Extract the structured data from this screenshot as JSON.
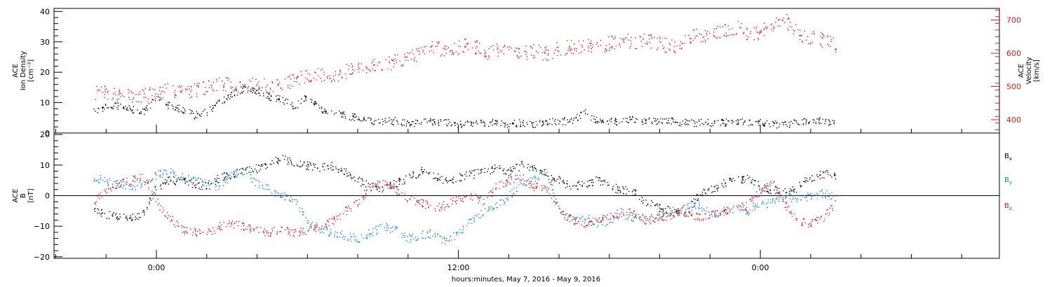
{
  "chart_data": [
    {
      "type": "scatter",
      "panel": "top",
      "left_axis": {
        "title_lines": [
          "ACE",
          "Ion Density",
          "[cm⁻³]"
        ],
        "ylim": [
          0,
          41
        ],
        "ticks": [
          "0",
          "10",
          "20",
          "30",
          "40"
        ],
        "color": "#000000"
      },
      "right_axis": {
        "title_lines": [
          "ACE",
          "Velocity",
          "[km/s]"
        ],
        "ylim": [
          360,
          735
        ],
        "ticks": [
          "400",
          "500",
          "600",
          "700"
        ],
        "color": "#e8161b"
      },
      "series": [
        {
          "axis": "left",
          "color": "#000000",
          "x": [
            -5,
            -4,
            -3,
            -2,
            -1,
            0,
            1,
            2,
            3,
            4,
            5,
            6,
            7,
            8,
            9,
            10,
            11,
            12,
            13,
            14,
            15,
            16,
            17,
            18,
            19,
            20,
            21,
            22,
            23,
            24,
            25,
            26,
            27,
            28,
            29,
            30,
            31,
            32,
            33,
            34,
            35,
            36,
            37,
            38,
            39,
            40,
            41,
            42,
            43,
            44,
            45,
            46,
            47,
            48,
            49,
            50,
            51,
            52,
            53,
            54
          ],
          "y": [
            7,
            9,
            9,
            8,
            7,
            12,
            9,
            8,
            6,
            7,
            10,
            13,
            15,
            14,
            12,
            11,
            9,
            12,
            8,
            7,
            6,
            5,
            4,
            4,
            4,
            3.5,
            3.5,
            4,
            3.5,
            3,
            3.5,
            3.5,
            3.5,
            3,
            3.5,
            3,
            3.5,
            4,
            4,
            7,
            4,
            4,
            4,
            4.5,
            4,
            4,
            4,
            3.5,
            3.5,
            3.5,
            3.5,
            4,
            3.5,
            3.5,
            3,
            3,
            3.5,
            4,
            4,
            3
          ]
        },
        {
          "axis": "right",
          "color": "#e8161b",
          "x": [
            -5,
            -4,
            -3,
            -2,
            -1,
            0,
            1,
            2,
            3,
            4,
            5,
            6,
            7,
            8,
            9,
            10,
            11,
            12,
            13,
            14,
            15,
            16,
            17,
            18,
            19,
            20,
            21,
            22,
            23,
            24,
            25,
            26,
            27,
            28,
            29,
            30,
            31,
            32,
            33,
            34,
            35,
            36,
            37,
            38,
            39,
            40,
            41,
            42,
            43,
            44,
            45,
            46,
            47,
            48,
            49,
            50,
            51,
            52,
            53,
            54
          ],
          "y": [
            480,
            485,
            475,
            470,
            475,
            485,
            490,
            485,
            490,
            500,
            510,
            505,
            500,
            510,
            500,
            510,
            520,
            530,
            540,
            530,
            545,
            555,
            560,
            565,
            575,
            585,
            600,
            620,
            610,
            620,
            630,
            600,
            610,
            620,
            600,
            610,
            600,
            615,
            620,
            625,
            620,
            630,
            640,
            635,
            640,
            630,
            620,
            640,
            660,
            650,
            670,
            680,
            660,
            665,
            690,
            700,
            660,
            650,
            640,
            620
          ]
        }
      ]
    },
    {
      "type": "scatter",
      "panel": "bottom",
      "left_axis": {
        "title_lines": [
          "ACE",
          "B",
          "[nT]"
        ],
        "ylim": [
          -20.5,
          20.5
        ],
        "ticks": [
          "−20",
          "−10",
          "0",
          "10",
          "20"
        ]
      },
      "xticks": [
        "0:00",
        "12:00",
        "0:00"
      ],
      "xlabel": "hours:minutes, May  7, 2016 - May  9, 2016",
      "series": [
        {
          "name": "B",
          "subscript": "x",
          "color": "#000000",
          "x": [
            -5,
            -4,
            -3,
            -2,
            -1,
            0,
            1,
            2,
            3,
            4,
            5,
            6,
            7,
            8,
            9,
            10,
            11,
            12,
            13,
            14,
            15,
            16,
            17,
            18,
            19,
            20,
            21,
            22,
            23,
            24,
            25,
            26,
            27,
            28,
            29,
            30,
            31,
            32,
            33,
            34,
            35,
            36,
            37,
            38,
            39,
            40,
            41,
            42,
            43,
            44,
            45,
            46,
            47,
            48,
            49,
            50,
            51,
            52,
            53,
            54
          ],
          "y": [
            -4,
            -6,
            -7,
            -7,
            -6,
            3,
            5,
            5,
            4,
            3,
            6,
            7,
            8,
            9,
            11,
            12,
            11,
            10,
            9,
            10,
            8,
            5,
            3,
            2,
            4,
            6,
            8,
            7,
            5,
            6,
            7,
            8,
            9,
            8,
            10,
            9,
            7,
            5,
            3,
            4,
            5,
            3,
            2,
            1,
            -2,
            -4,
            -5,
            -6,
            0,
            2,
            4,
            5,
            6,
            3,
            2,
            1,
            3,
            6,
            7,
            7
          ]
        },
        {
          "name": "B",
          "subscript": "y",
          "color": "#1a85d6",
          "x": [
            -5,
            -4,
            -3,
            -2,
            -1,
            0,
            1,
            2,
            3,
            4,
            5,
            6,
            7,
            8,
            9,
            10,
            11,
            12,
            13,
            14,
            15,
            16,
            17,
            18,
            19,
            20,
            21,
            22,
            23,
            24,
            25,
            26,
            27,
            28,
            29,
            30,
            31,
            32,
            33,
            34,
            35,
            36,
            37,
            38,
            39,
            40,
            41,
            42,
            43,
            44,
            45,
            46,
            47,
            48,
            49,
            50,
            51,
            52,
            53,
            54
          ],
          "y": [
            6,
            5,
            4,
            3,
            4,
            7,
            8,
            6,
            5,
            4,
            3,
            7,
            8,
            4,
            2,
            0,
            -2,
            -8,
            -11,
            -12,
            -13,
            -14,
            -12,
            -10,
            -11,
            -14,
            -13,
            -12,
            -15,
            -12,
            -8,
            -5,
            -3,
            0,
            4,
            5,
            8,
            -5,
            -8,
            -7,
            -9,
            -8,
            -6,
            -7,
            -8,
            -6,
            -5,
            -4,
            -3,
            -6,
            -5,
            -4,
            -5,
            -3,
            -2,
            0,
            -1,
            0,
            1,
            -1
          ]
        },
        {
          "name": "B",
          "subscript": "z",
          "color": "#e8161b",
          "x": [
            -5,
            -4,
            -3,
            -2,
            -1,
            0,
            1,
            2,
            3,
            4,
            5,
            6,
            7,
            8,
            9,
            10,
            11,
            12,
            13,
            14,
            15,
            16,
            17,
            18,
            19,
            20,
            21,
            22,
            23,
            24,
            25,
            26,
            27,
            28,
            29,
            30,
            31,
            32,
            33,
            34,
            35,
            36,
            37,
            38,
            39,
            40,
            41,
            42,
            43,
            44,
            45,
            46,
            47,
            48,
            49,
            50,
            51,
            52,
            53,
            54
          ],
          "y": [
            -2,
            2,
            4,
            5,
            6,
            -2,
            -7,
            -11,
            -12,
            -12,
            -10,
            -9,
            -10,
            -11,
            -12,
            -11,
            -12,
            -11,
            -10,
            -8,
            -5,
            -2,
            3,
            4,
            2,
            -1,
            -2,
            -4,
            -3,
            -1,
            0,
            -2,
            3,
            5,
            6,
            3,
            2,
            -4,
            -8,
            -9,
            -8,
            -7,
            -5,
            -6,
            -8,
            -7,
            -6,
            -5,
            -7,
            -6,
            -5,
            -4,
            -3,
            2,
            4,
            -3,
            -8,
            -9,
            -7,
            -2
          ]
        }
      ]
    }
  ]
}
